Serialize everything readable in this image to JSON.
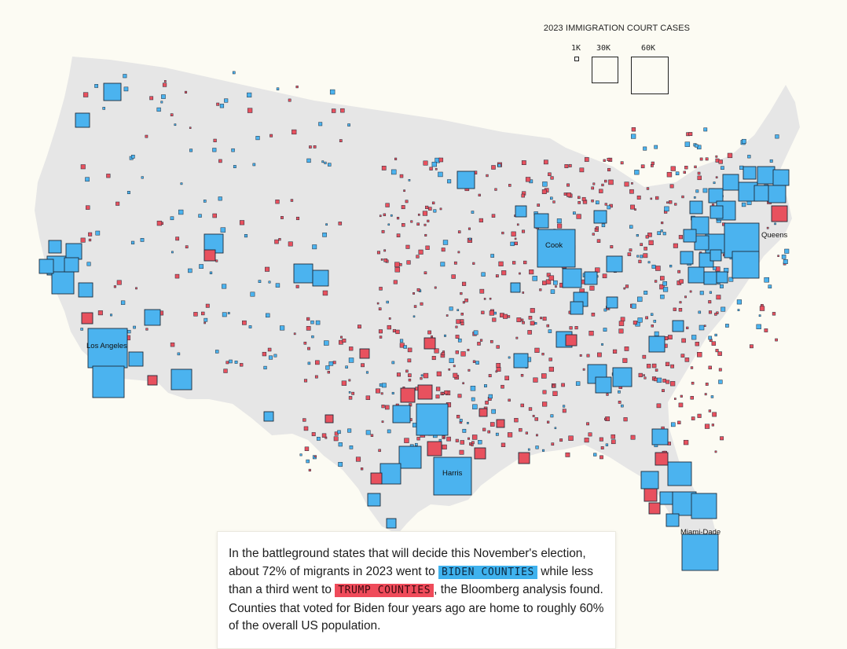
{
  "colors": {
    "biden": "#4bb3ef",
    "trump": "#e8515e",
    "land": "#e6e6e6",
    "background": "#fcfbf3",
    "stroke": "#1e2b3a"
  },
  "legend": {
    "title": "2023 IMMIGRATION COURT CASES",
    "items": [
      {
        "label": "1K",
        "cases": 1000
      },
      {
        "label": "30K",
        "cases": 30000
      },
      {
        "label": "60K",
        "cases": 60000
      }
    ]
  },
  "labels": {
    "cook": "Cook",
    "queens": "Queens",
    "los_angeles": "Los Angeles",
    "harris": "Harris",
    "miami_dade": "Miami-Dade"
  },
  "caption": {
    "part1": "In the battleground states that will decide this November's election, about 72% of migrants in 2023 went to ",
    "biden_tag": "BIDEN COUNTIES",
    "part2": " while less than a third went to ",
    "trump_tag": "TRUMP COUNTIES",
    "part3": ", the Bloomberg analysis found. Counties that voted for Biden four years ago are home to roughly 60% of the overall US population."
  }
}
